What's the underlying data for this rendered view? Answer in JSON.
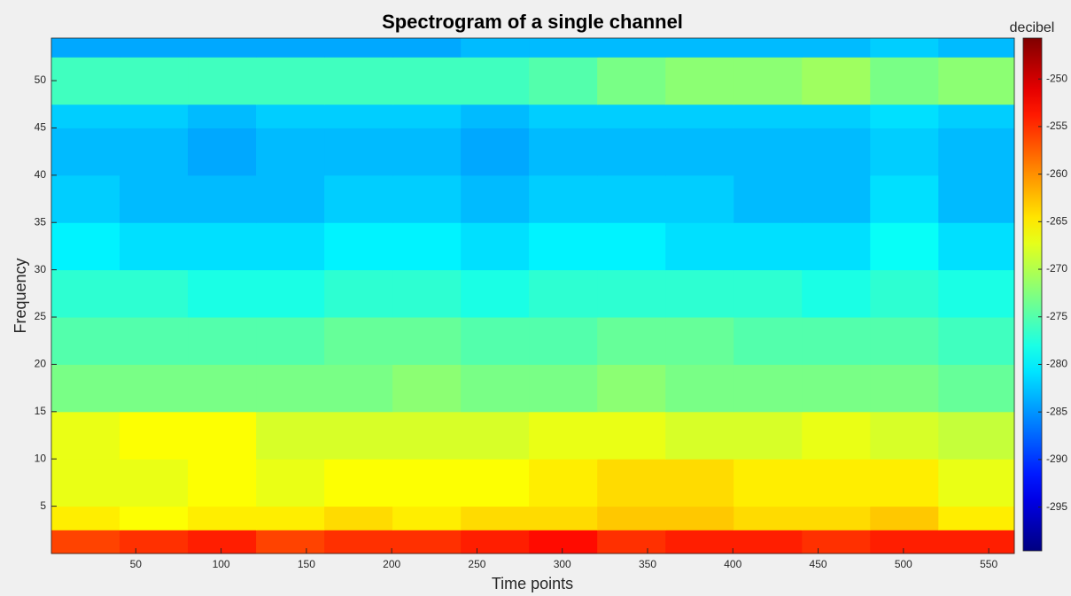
{
  "chart_data": {
    "type": "heatmap",
    "title": "Spectrogram of a single channel",
    "x_label": "Time points",
    "y_label": "Frequency",
    "colorbar_label": "decibel",
    "colormap": "jet",
    "xbins": [
      0.5,
      40.5,
      80.5,
      120.5,
      160.5,
      200.5,
      240.5,
      280.5,
      320.5,
      360.5,
      400.5,
      440.5,
      480.5,
      520.5,
      565
    ],
    "ybins": [
      0,
      2.5,
      5,
      10,
      15,
      20,
      25,
      30,
      35,
      40,
      45,
      47.5,
      52.5,
      54.5
    ],
    "values": [
      [
        -256,
        -255,
        -254,
        -256,
        -255,
        -255,
        -254,
        -253,
        -255,
        -254,
        -254,
        -255,
        -254,
        -254
      ],
      [
        -265,
        -266,
        -265,
        -265,
        -264,
        -265,
        -264,
        -264,
        -263,
        -263,
        -264,
        -264,
        -263,
        -265
      ],
      [
        -267,
        -267,
        -266,
        -267,
        -266,
        -266,
        -266,
        -265,
        -264,
        -264,
        -265,
        -265,
        -265,
        -267
      ],
      [
        -267,
        -266,
        -266,
        -268,
        -268,
        -268,
        -268,
        -267,
        -267,
        -268,
        -268,
        -267,
        -268,
        -269
      ],
      [
        -273,
        -273,
        -273,
        -273,
        -273,
        -272,
        -273,
        -273,
        -272,
        -273,
        -273,
        -273,
        -273,
        -274
      ],
      [
        -275,
        -275,
        -275,
        -275,
        -274,
        -274,
        -275,
        -275,
        -274,
        -274,
        -275,
        -275,
        -275,
        -276
      ],
      [
        -277,
        -277,
        -278,
        -278,
        -277,
        -277,
        -278,
        -277,
        -277,
        -277,
        -277,
        -278,
        -277,
        -278
      ],
      [
        -280,
        -281,
        -281,
        -281,
        -280,
        -280,
        -281,
        -280,
        -280,
        -281,
        -281,
        -281,
        -279,
        -281
      ],
      [
        -282,
        -283,
        -283,
        -283,
        -282,
        -282,
        -283,
        -282,
        -282,
        -282,
        -283,
        -283,
        -281,
        -283
      ],
      [
        -283,
        -283,
        -284,
        -283,
        -283,
        -283,
        -284,
        -283,
        -283,
        -283,
        -283,
        -283,
        -282,
        -283
      ],
      [
        -282,
        -282,
        -283,
        -282,
        -282,
        -282,
        -283,
        -282,
        -282,
        -282,
        -282,
        -282,
        -281,
        -282
      ],
      [
        -276,
        -276,
        -276,
        -276,
        -276,
        -276,
        -276,
        -275,
        -273,
        -272,
        -272,
        -271,
        -273,
        -272
      ],
      [
        -284,
        -284,
        -284,
        -284,
        -284,
        -284,
        -283,
        -283,
        -283,
        -283,
        -283,
        -283,
        -282,
        -283
      ]
    ],
    "xlim": [
      0.5,
      565
    ],
    "ylim": [
      0,
      54.5
    ],
    "clim": [
      -299.6,
      -245.7
    ],
    "xticks": [
      50,
      100,
      150,
      200,
      250,
      300,
      350,
      400,
      450,
      500,
      550
    ],
    "yticks": [
      5,
      10,
      15,
      20,
      25,
      30,
      35,
      40,
      45,
      50
    ],
    "cticks": [
      -295,
      -290,
      -285,
      -280,
      -275,
      -270,
      -265,
      -260,
      -255,
      -250
    ]
  }
}
